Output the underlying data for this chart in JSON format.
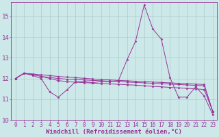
{
  "background_color": "#cce8e8",
  "grid_color": "#aacccc",
  "line_color": "#993399",
  "xlabel": "Windchill (Refroidissement éolien,°C)",
  "xlabel_fontsize": 6.5,
  "xtick_fontsize": 5.5,
  "ytick_fontsize": 6.5,
  "xlim": [
    -0.5,
    23.5
  ],
  "ylim": [
    10.0,
    15.7
  ],
  "yticks": [
    10,
    11,
    12,
    13,
    14,
    15
  ],
  "series": [
    [
      12.0,
      12.25,
      12.15,
      12.0,
      11.35,
      11.1,
      11.45,
      11.85,
      11.85,
      11.8,
      11.85,
      11.85,
      11.9,
      12.9,
      13.8,
      15.55,
      14.4,
      13.9,
      12.05,
      11.1,
      11.1,
      11.6,
      11.15,
      10.25
    ],
    [
      12.0,
      12.25,
      12.2,
      12.1,
      12.0,
      11.9,
      11.85,
      11.82,
      11.8,
      11.78,
      11.76,
      11.74,
      11.72,
      11.7,
      11.68,
      11.65,
      11.62,
      11.6,
      11.57,
      11.55,
      11.52,
      11.5,
      11.47,
      10.4
    ],
    [
      12.0,
      12.25,
      12.2,
      12.1,
      12.05,
      12.0,
      11.97,
      11.95,
      11.93,
      11.91,
      11.89,
      11.87,
      11.85,
      11.83,
      11.81,
      11.79,
      11.77,
      11.75,
      11.73,
      11.71,
      11.69,
      11.67,
      11.65,
      10.4
    ],
    [
      12.0,
      12.25,
      12.22,
      12.18,
      12.14,
      12.1,
      12.07,
      12.04,
      12.01,
      11.98,
      11.95,
      11.93,
      11.91,
      11.89,
      11.87,
      11.85,
      11.83,
      11.81,
      11.79,
      11.77,
      11.75,
      11.73,
      11.71,
      10.4
    ]
  ]
}
